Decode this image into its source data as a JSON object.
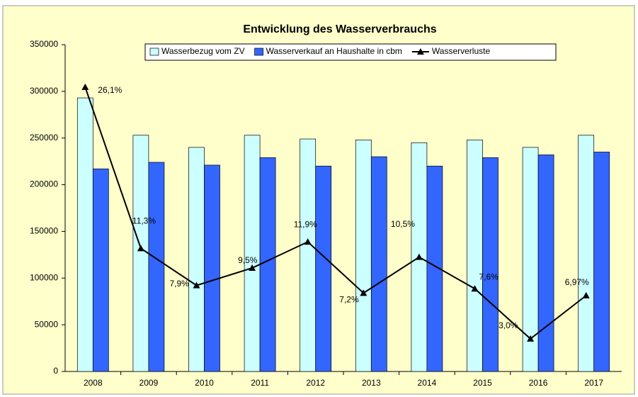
{
  "chart_data": {
    "type": "bar",
    "title": "Entwicklung des Wasserverbrauchs",
    "categories": [
      "2008",
      "2009",
      "2010",
      "2011",
      "2012",
      "2013",
      "2014",
      "2015",
      "2016",
      "2017"
    ],
    "series": [
      {
        "name": "Wasserbezug vom ZV",
        "color": "#ccffff",
        "values": [
          293000,
          253000,
          240000,
          253000,
          249000,
          248000,
          245000,
          248000,
          240000,
          253000
        ]
      },
      {
        "name": "Wasserverkauf an Haushalte in cbm",
        "color": "#3366ff",
        "values": [
          217000,
          224000,
          221000,
          229000,
          220000,
          230000,
          220000,
          229000,
          232000,
          235000
        ]
      },
      {
        "name": "Wasserverluste",
        "color": "#000000",
        "type": "line",
        "axis": "y2",
        "values": [
          26.1,
          11.3,
          7.9,
          9.5,
          11.9,
          7.2,
          10.5,
          7.6,
          3.0,
          6.97
        ],
        "value_labels": [
          "26,1%",
          "11,3%",
          "7,9%",
          "9,5%",
          "11,9%",
          "7,2%",
          "10,5%",
          "7,6%",
          "3,0%",
          "6,97%"
        ]
      }
    ],
    "ylim": [
      0,
      350000
    ],
    "yticks": [
      0,
      50000,
      100000,
      150000,
      200000,
      250000,
      300000,
      350000
    ],
    "y2lim": [
      0,
      30
    ],
    "grid": false,
    "legend": "top",
    "background": "#ffffcc"
  }
}
